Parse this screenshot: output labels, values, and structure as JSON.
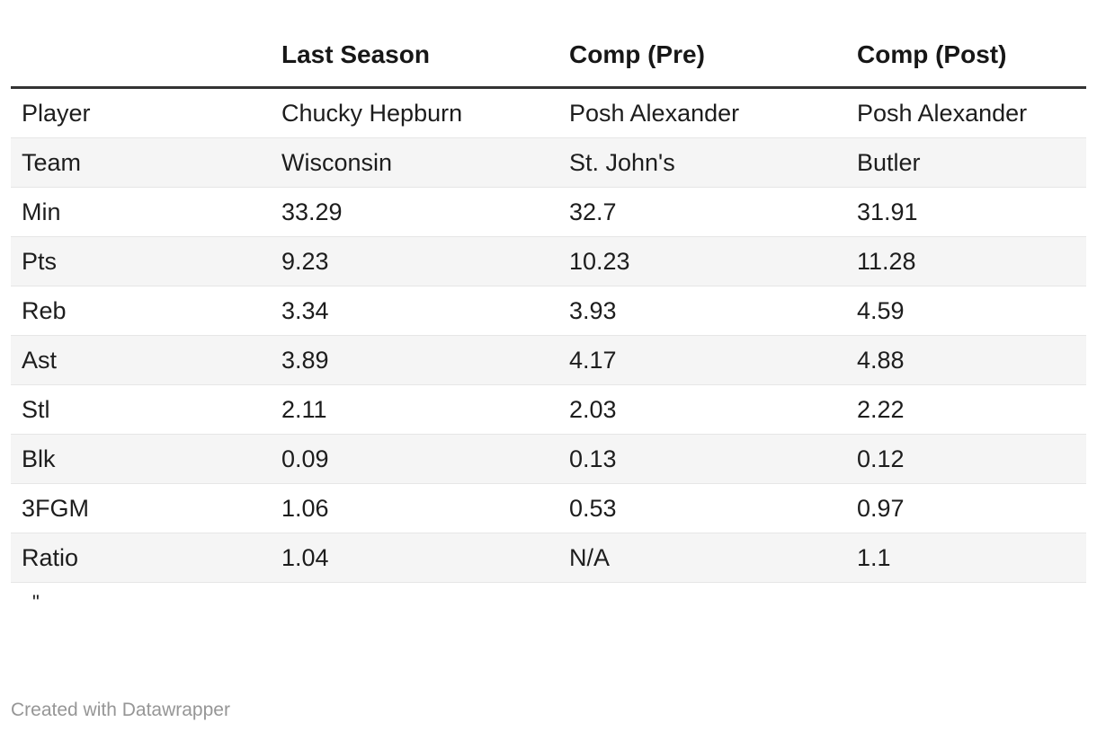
{
  "colors": {
    "background": "#ffffff",
    "text": "#1d1d1d",
    "header_text": "#171717",
    "header_rule": "#333333",
    "row_stripe": "#f5f5f5",
    "row_border": "#e6e6e6",
    "footer_text": "#969696"
  },
  "chart_data": {
    "type": "table",
    "columns": [
      "",
      "Last Season",
      "Comp (Pre)",
      "Comp (Post)"
    ],
    "rows": [
      {
        "label": "Player",
        "last_season": "Chucky Hepburn",
        "comp_pre": "Posh Alexander",
        "comp_post": "Posh Alexander"
      },
      {
        "label": "Team",
        "last_season": "Wisconsin",
        "comp_pre": "St. John's",
        "comp_post": "Butler"
      },
      {
        "label": "Min",
        "last_season": "33.29",
        "comp_pre": "32.7",
        "comp_post": "31.91"
      },
      {
        "label": "Pts",
        "last_season": "9.23",
        "comp_pre": "10.23",
        "comp_post": "11.28"
      },
      {
        "label": "Reb",
        "last_season": "3.34",
        "comp_pre": "3.93",
        "comp_post": "4.59"
      },
      {
        "label": "Ast",
        "last_season": "3.89",
        "comp_pre": "4.17",
        "comp_post": "4.88"
      },
      {
        "label": "Stl",
        "last_season": "2.11",
        "comp_pre": "2.03",
        "comp_post": "2.22"
      },
      {
        "label": "Blk",
        "last_season": "0.09",
        "comp_pre": "0.13",
        "comp_post": "0.12"
      },
      {
        "label": "3FGM",
        "last_season": "1.06",
        "comp_pre": "0.53",
        "comp_post": "0.97"
      },
      {
        "label": "Ratio",
        "last_season": "1.04",
        "comp_pre": "N/A",
        "comp_post": "1.1"
      }
    ],
    "note": "\"",
    "layout_hints": {
      "striped": true,
      "grid": "horizontal-only",
      "header_rule": "thick"
    }
  },
  "footer": {
    "attribution": "Created with Datawrapper"
  }
}
